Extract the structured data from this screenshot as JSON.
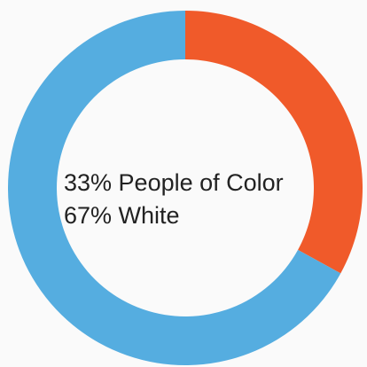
{
  "chart_data": {
    "type": "pie",
    "variant": "donut",
    "slices": [
      {
        "label": "People of Color",
        "value": 33,
        "color": "#F05A2A"
      },
      {
        "label": "White",
        "value": 67,
        "color": "#55ADE0"
      }
    ],
    "center_labels": [
      "33% People of Color",
      "67% White"
    ],
    "start": "top",
    "direction": "clockwise",
    "legend": "none"
  }
}
